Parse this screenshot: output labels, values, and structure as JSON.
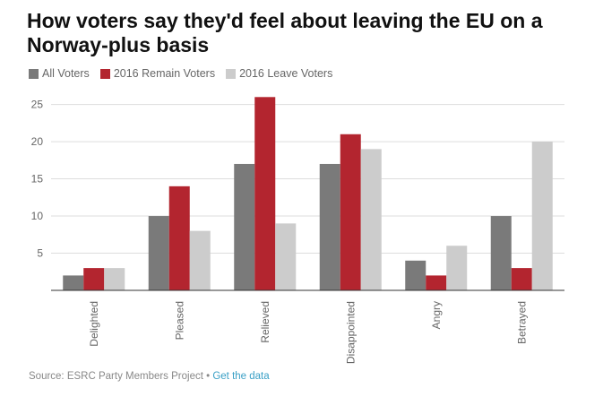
{
  "chart_data": {
    "type": "bar",
    "title": "How voters say they'd feel about leaving the EU on a Norway-plus basis",
    "categories": [
      "Delighted",
      "Pleased",
      "Relieved",
      "Disappointed",
      "Angry",
      "Betrayed"
    ],
    "series": [
      {
        "name": "All Voters",
        "color": "#7a7a7a",
        "values": [
          2,
          10,
          17,
          17,
          4,
          10
        ]
      },
      {
        "name": "2016 Remain Voters",
        "color": "#b3252f",
        "values": [
          3,
          14,
          26,
          21,
          2,
          3
        ]
      },
      {
        "name": "2016 Leave Voters",
        "color": "#cccccc",
        "values": [
          3,
          8,
          9,
          19,
          6,
          20
        ]
      }
    ],
    "y_ticks": [
      "5",
      "10",
      "15",
      "20",
      "25"
    ],
    "ylim": [
      0,
      27
    ],
    "xlabel": "",
    "ylabel": "",
    "grid": true,
    "legend_position": "top-left"
  },
  "footer": {
    "source": "Source: ESRC Party Members Project",
    "separator": " • ",
    "link": "Get the data"
  }
}
